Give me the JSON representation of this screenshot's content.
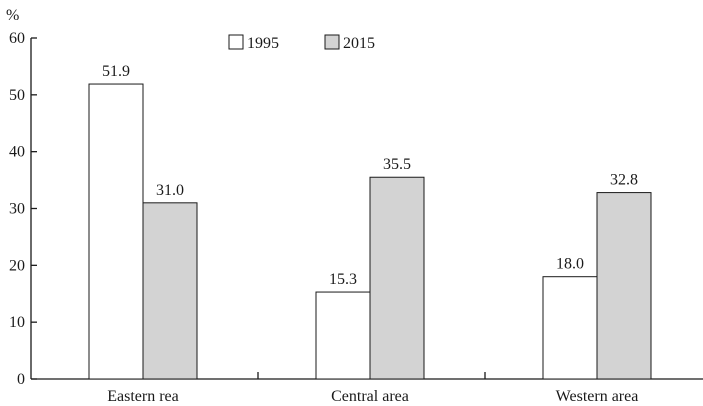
{
  "chart_data": {
    "type": "bar",
    "title": "",
    "xlabel": "",
    "ylabel": "%",
    "ylim": [
      0,
      60
    ],
    "yticks": [
      0,
      10,
      20,
      30,
      40,
      50,
      60
    ],
    "grid": false,
    "legend_position": "top-center",
    "categories": [
      "Eastern rea",
      "Central area",
      "Western area"
    ],
    "series": [
      {
        "name": "1995",
        "values": [
          51.9,
          15.3,
          18.0
        ],
        "labels": [
          "51.9",
          "15.3",
          "18.0"
        ],
        "color": "#ffffff"
      },
      {
        "name": "2015",
        "values": [
          31.0,
          35.5,
          32.8
        ],
        "labels": [
          "31.0",
          "35.5",
          "32.8"
        ],
        "color": "#d3d3d3"
      }
    ]
  }
}
